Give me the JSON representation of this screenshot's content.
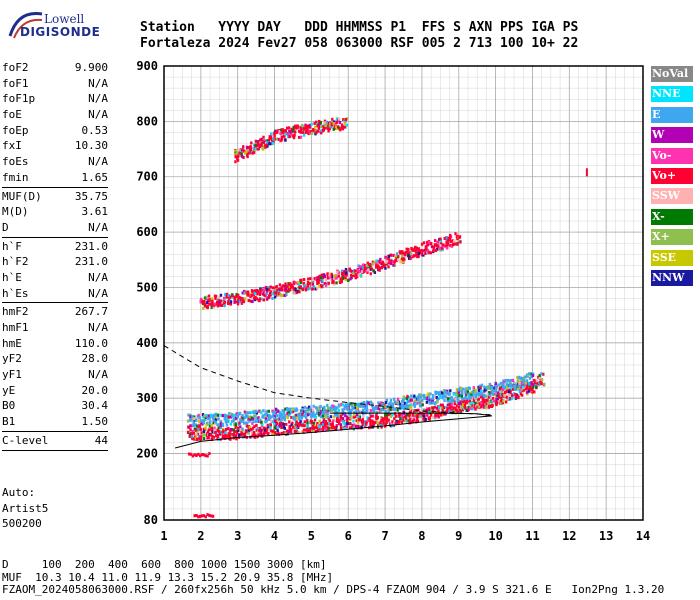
{
  "logo": {
    "line1": "Lowell",
    "line2": "DIGISONDE"
  },
  "header": {
    "line1": "Station   YYYY DAY   DDD HHMMSS P1  FFS S AXN PPS IGA PS",
    "line2": "Fortaleza 2024 Fev27 058 063000 RSF 005 2 713 100 10+ 22"
  },
  "params": [
    [
      [
        "foF2",
        "9.900"
      ],
      [
        "foF1",
        "N/A"
      ],
      [
        "foF1p",
        "N/A"
      ],
      [
        "foE",
        "N/A"
      ],
      [
        "foEp",
        "0.53"
      ],
      [
        "fxI",
        "10.30"
      ],
      [
        "foEs",
        "N/A"
      ],
      [
        "fmin",
        "1.65"
      ]
    ],
    [
      [
        "MUF(D)",
        "35.75"
      ],
      [
        "M(D)",
        "3.61"
      ],
      [
        "D",
        "N/A"
      ]
    ],
    [
      [
        "h`F",
        "231.0"
      ],
      [
        "h`F2",
        "231.0"
      ],
      [
        "h`E",
        "N/A"
      ],
      [
        "h`Es",
        "N/A"
      ]
    ],
    [
      [
        "hmF2",
        "267.7"
      ],
      [
        "hmF1",
        "N/A"
      ],
      [
        "hmE",
        "110.0"
      ],
      [
        "yF2",
        "28.0"
      ],
      [
        "yF1",
        "N/A"
      ],
      [
        "yE",
        "20.0"
      ],
      [
        "B0",
        "30.4"
      ],
      [
        "B1",
        "1.50"
      ]
    ],
    [
      [
        "C-level",
        "44"
      ]
    ]
  ],
  "auto": [
    "Auto:",
    "Artist5",
    "500200"
  ],
  "footer": {
    "line1": "D     100  200  400  600  800 1000 1500 3000 [km]",
    "line2": "MUF  10.3 10.4 11.0 11.9 13.3 15.2 20.9 35.8 [MHz]",
    "line3": "FZAOM_2024058063000.RSF / 260fx256h 50 kHz 5.0 km / DPS-4 FZAOM 904 / 3.9 S 321.6 E   Ion2Png 1.3.20"
  },
  "legend": [
    {
      "label": "NoVal",
      "color": "#888888"
    },
    {
      "label": "NNE",
      "color": "#00e5ff"
    },
    {
      "label": "E",
      "color": "#3fa6f0"
    },
    {
      "label": "W",
      "color": "#b400b4"
    },
    {
      "label": "Vo-",
      "color": "#ff33b0"
    },
    {
      "label": "Vo+",
      "color": "#ff0033"
    },
    {
      "label": "SSW",
      "color": "#ffb0b0"
    },
    {
      "label": "X-",
      "color": "#007a00"
    },
    {
      "label": "X+",
      "color": "#8fbf4f"
    },
    {
      "label": "SSE",
      "color": "#c8c800"
    },
    {
      "label": "NNW",
      "color": "#1a1aa0"
    }
  ],
  "chart_data": {
    "type": "scatter",
    "xlabel": "",
    "ylabel": "",
    "xlim": [
      1,
      14
    ],
    "ylim": [
      80,
      900
    ],
    "x_ticks": [
      1,
      2,
      3,
      4,
      5,
      6,
      7,
      8,
      9,
      10,
      11,
      12,
      13,
      14
    ],
    "y_ticks": [
      80,
      200,
      300,
      400,
      500,
      600,
      700,
      800,
      900
    ],
    "grid": true,
    "trace_bands": [
      {
        "name": "Es sporadic",
        "color": "#ff0033",
        "x_start": 1.8,
        "x_end": 2.3,
        "h_low": 88,
        "h_high": 93
      },
      {
        "name": "low band",
        "color": "#ff0033",
        "x_start": 1.65,
        "x_end": 2.2,
        "h_low": 198,
        "h_high": 203
      },
      {
        "name": "F trace main",
        "color": "#ff0033",
        "points": [
          [
            1.65,
            240
          ],
          [
            2,
            238
          ],
          [
            3,
            240
          ],
          [
            4,
            247
          ],
          [
            5,
            253
          ],
          [
            6,
            258
          ],
          [
            7,
            262
          ],
          [
            8,
            272
          ],
          [
            9,
            288
          ],
          [
            10,
            300
          ],
          [
            11,
            325
          ],
          [
            11.3,
            340
          ]
        ]
      },
      {
        "name": "F trace oblique",
        "color": "#3fa6f0",
        "points": [
          [
            1.65,
            262
          ],
          [
            2,
            262
          ],
          [
            3,
            266
          ],
          [
            4,
            272
          ],
          [
            5,
            277
          ],
          [
            6,
            282
          ],
          [
            7,
            288
          ],
          [
            8,
            300
          ],
          [
            9,
            310
          ],
          [
            10,
            320
          ],
          [
            11,
            338
          ]
        ]
      },
      {
        "name": "2F echo",
        "color": "#ff0033",
        "points": [
          [
            2,
            475
          ],
          [
            3,
            483
          ],
          [
            4,
            495
          ],
          [
            5,
            510
          ],
          [
            6,
            526
          ],
          [
            7,
            548
          ],
          [
            8,
            572
          ],
          [
            9,
            592
          ]
        ]
      },
      {
        "name": "3F echo",
        "color": "#ff0033",
        "points": [
          [
            2.9,
            740
          ],
          [
            3.5,
            758
          ],
          [
            4,
            775
          ],
          [
            5,
            790
          ],
          [
            5.9,
            800
          ]
        ]
      }
    ],
    "profile_solid": [
      [
        1.3,
        210
      ],
      [
        2,
        222
      ],
      [
        3,
        229
      ],
      [
        4,
        233
      ],
      [
        5,
        238
      ],
      [
        6,
        244
      ],
      [
        7,
        250
      ],
      [
        8,
        257
      ],
      [
        9,
        263
      ],
      [
        9.9,
        268
      ],
      [
        9.5,
        272
      ],
      [
        8.5,
        273
      ],
      [
        7.5,
        273
      ],
      [
        6.5,
        273
      ],
      [
        5.5,
        273
      ]
    ],
    "profile_dashed": [
      [
        1,
        395
      ],
      [
        1.5,
        375
      ],
      [
        2,
        355
      ],
      [
        3,
        331
      ],
      [
        4,
        310
      ],
      [
        5,
        300
      ],
      [
        6,
        292
      ],
      [
        7,
        285
      ],
      [
        8,
        277
      ],
      [
        9,
        273
      ],
      [
        9.9,
        270
      ]
    ],
    "isolated_points": [
      [
        12.45,
        708
      ]
    ]
  }
}
